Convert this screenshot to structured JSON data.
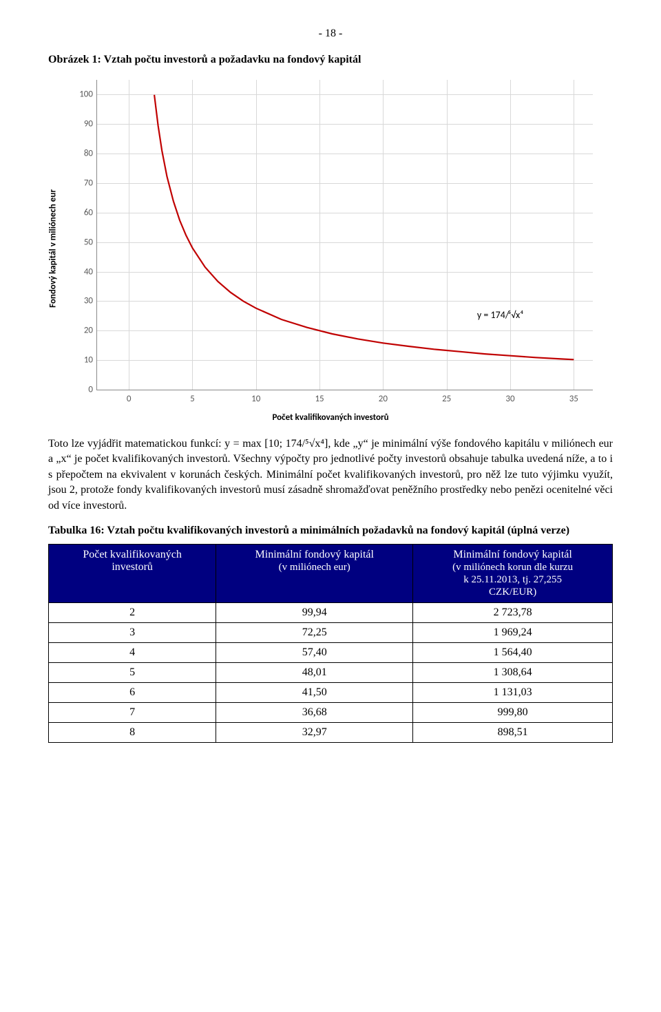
{
  "page_number": "- 18 -",
  "figure_title": "Obrázek 1: Vztah počtu investorů a požadavku na fondový kapitál",
  "chart": {
    "type": "line",
    "y_label": "Fondový kapitál v miliónech eur",
    "x_label": "Počet kvalifikovaných investorů",
    "equation": "y = 174/⁵√x⁴",
    "equation_pos": {
      "right_pct": 14,
      "top_pct": 74
    },
    "xlim": [
      -2.5,
      36.5
    ],
    "ylim": [
      0,
      105
    ],
    "x_ticks": [
      0,
      5,
      10,
      15,
      20,
      25,
      30,
      35
    ],
    "y_ticks": [
      0,
      10,
      20,
      30,
      40,
      50,
      60,
      70,
      80,
      90,
      100
    ],
    "line_color": "#c00000",
    "line_width": 2.2,
    "grid_color": "#d8d8d8",
    "axis_color": "#888888",
    "tick_color": "#595959",
    "tick_fontsize": 13,
    "label_fontsize": 13,
    "background_color": "#ffffff",
    "series": [
      {
        "x": 2,
        "y": 99.94
      },
      {
        "x": 2.3,
        "y": 89.5
      },
      {
        "x": 2.6,
        "y": 81.0
      },
      {
        "x": 3,
        "y": 72.25
      },
      {
        "x": 3.5,
        "y": 63.9
      },
      {
        "x": 4,
        "y": 57.4
      },
      {
        "x": 4.5,
        "y": 52.3
      },
      {
        "x": 5,
        "y": 48.01
      },
      {
        "x": 6,
        "y": 41.5
      },
      {
        "x": 7,
        "y": 36.68
      },
      {
        "x": 8,
        "y": 32.97
      },
      {
        "x": 9,
        "y": 30.0
      },
      {
        "x": 10,
        "y": 27.6
      },
      {
        "x": 12,
        "y": 23.8
      },
      {
        "x": 14,
        "y": 21.1
      },
      {
        "x": 16,
        "y": 18.9
      },
      {
        "x": 18,
        "y": 17.2
      },
      {
        "x": 20,
        "y": 15.8
      },
      {
        "x": 22,
        "y": 14.7
      },
      {
        "x": 24,
        "y": 13.7
      },
      {
        "x": 26,
        "y": 12.9
      },
      {
        "x": 28,
        "y": 12.1
      },
      {
        "x": 30,
        "y": 11.5
      },
      {
        "x": 32,
        "y": 10.9
      },
      {
        "x": 34,
        "y": 10.4
      },
      {
        "x": 35,
        "y": 10.2
      }
    ]
  },
  "paragraph": "Toto lze vyjádřit matematickou funkcí: y = max [10; 174/⁵√x⁴], kde „y“ je minimální výše fondového kapitálu v miliónech eur a „x“ je počet kvalifikovaných investorů. Všechny výpočty pro jednotlivé počty investorů obsahuje tabulka uvedená níže, a to i s přepočtem na ekvivalent v korunách českých. Minimální počet kvalifikovaných investorů, pro něž lze tuto výjimku využít, jsou 2, protože fondy kvalifikovaných investorů musí zásadně shromažďovat peněžního prostředky nebo penězi ocenitelné věci od více investorů.",
  "table_title": "Tabulka 16: Vztah počtu kvalifikovaných investorů a minimálních požadavků na fondový kapitál (úplná verze)",
  "table": {
    "header_bg": "#000080",
    "header_fg": "#ffffff",
    "border_color": "#000000",
    "columns": [
      {
        "title_line1": "Počet kvalifikovaných",
        "title_line2": "investorů"
      },
      {
        "title_line1": "Minimální fondový kapitál",
        "title_line2": "(v miliónech eur)"
      },
      {
        "title_line1": "Minimální fondový kapitál",
        "title_line2": "(v miliónech korun dle kurzu",
        "title_line3": "k 25.11.2013, tj. 27,255",
        "title_line4": "CZK/EUR)"
      }
    ],
    "rows": [
      {
        "c0": "2",
        "c1": "99,94",
        "c2": "2 723,78"
      },
      {
        "c0": "3",
        "c1": "72,25",
        "c2": "1 969,24"
      },
      {
        "c0": "4",
        "c1": "57,40",
        "c2": "1 564,40"
      },
      {
        "c0": "5",
        "c1": "48,01",
        "c2": "1 308,64"
      },
      {
        "c0": "6",
        "c1": "41,50",
        "c2": "1 131,03"
      },
      {
        "c0": "7",
        "c1": "36,68",
        "c2": "999,80"
      },
      {
        "c0": "8",
        "c1": "32,97",
        "c2": "898,51"
      }
    ]
  }
}
